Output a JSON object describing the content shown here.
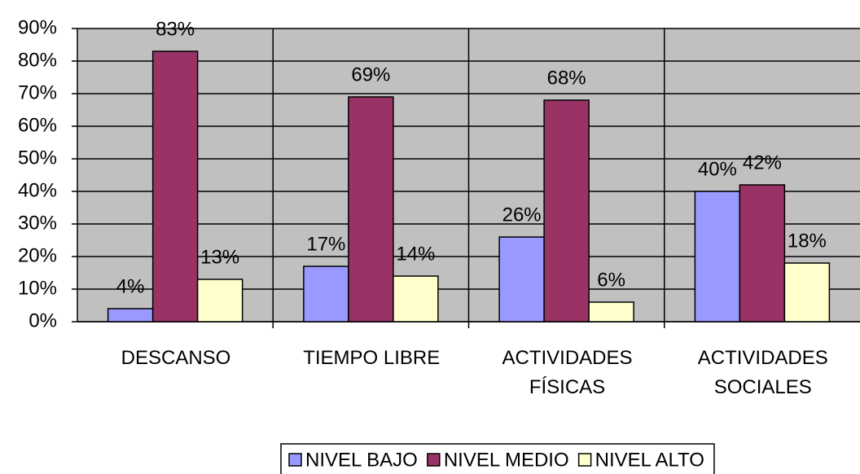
{
  "chart_data": {
    "type": "bar",
    "categories": [
      "DESCANSO",
      "TIEMPO LIBRE",
      "ACTIVIDADES\nFÍSICAS",
      "ACTIVIDADES\nSOCIALES"
    ],
    "series": [
      {
        "name": "NIVEL BAJO",
        "color": "#9999ff",
        "values": [
          4,
          17,
          26,
          40
        ],
        "value_labels": [
          "4%",
          "17%",
          "26%",
          "40%"
        ]
      },
      {
        "name": "NIVEL MEDIO",
        "color": "#993366",
        "values": [
          83,
          69,
          68,
          42
        ],
        "value_labels": [
          "83%",
          "69%",
          "68%",
          "42%"
        ]
      },
      {
        "name": "NIVEL ALTO",
        "color": "#ffffcc",
        "values": [
          13,
          14,
          6,
          18
        ],
        "value_labels": [
          "13%",
          "14%",
          "6%",
          "18%"
        ]
      }
    ],
    "ylim": [
      0,
      90
    ],
    "yticks": [
      {
        "value": 0,
        "label": "0%"
      },
      {
        "value": 10,
        "label": "10%"
      },
      {
        "value": 20,
        "label": "20%"
      },
      {
        "value": 30,
        "label": "30%"
      },
      {
        "value": 40,
        "label": "40%"
      },
      {
        "value": 50,
        "label": "50%"
      },
      {
        "value": 60,
        "label": "60%"
      },
      {
        "value": 70,
        "label": "70%"
      },
      {
        "value": 80,
        "label": "80%"
      },
      {
        "value": 90,
        "label": "90%"
      }
    ],
    "grid": true,
    "legend": "bottom",
    "plot_background": "#c0c0c0"
  }
}
